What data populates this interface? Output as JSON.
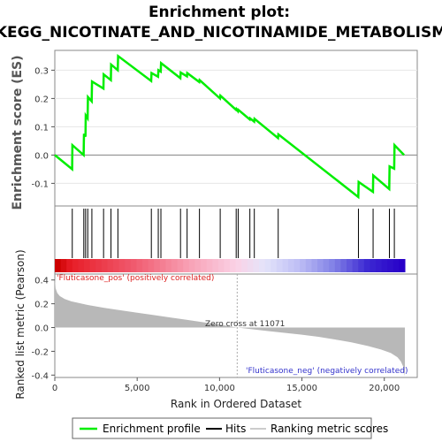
{
  "title_line1": "Enrichment plot:",
  "title_line2": "KEGG_NICOTINATE_AND_NICOTINAMIDE_METABOLISM",
  "colors": {
    "profile": "#00ee00",
    "hits": "#000000",
    "metric_fill": "#b8b8b8",
    "pos_label": "#dd2222",
    "neg_label": "#3333cc"
  },
  "chart_data": [
    {
      "type": "line",
      "name": "enrichment-profile",
      "ylabel": "Enrichment score (ES)",
      "ylim": [
        -0.18,
        0.37
      ],
      "y_ticks": [
        -0.1,
        0.0,
        0.1,
        0.2,
        0.3
      ],
      "y_tick_labels": [
        "-0.1",
        "0.0",
        "0.1",
        "0.2",
        "0.3"
      ],
      "xlim": [
        0,
        22000
      ],
      "zero_line": true,
      "series": [
        {
          "x": [
            0,
            1050,
            1070,
            1750,
            1770,
            1860,
            1880,
            1990,
            2010,
            2240,
            2260,
            2950,
            2970,
            3400,
            3420,
            3820,
            3840,
            5850,
            5870,
            6270,
            6290,
            6430,
            6450,
            7620,
            7640,
            8020,
            8040,
            8770,
            8790,
            10030,
            10050,
            11000,
            11020,
            11120,
            11140,
            11830,
            11850,
            12100,
            12120,
            13550,
            13570,
            18420,
            18440,
            19310,
            19330,
            20300,
            20320,
            20600,
            20620,
            21200
          ],
          "y": [
            0.0,
            -0.05,
            0.035,
            0.0,
            0.075,
            0.065,
            0.14,
            0.13,
            0.205,
            0.19,
            0.26,
            0.235,
            0.285,
            0.265,
            0.32,
            0.3,
            0.35,
            0.262,
            0.29,
            0.277,
            0.3,
            0.295,
            0.325,
            0.272,
            0.292,
            0.278,
            0.29,
            0.258,
            0.265,
            0.2,
            0.21,
            0.16,
            0.163,
            0.155,
            0.16,
            0.126,
            0.13,
            0.118,
            0.128,
            0.06,
            0.073,
            -0.148,
            -0.095,
            -0.13,
            -0.072,
            -0.12,
            -0.04,
            -0.048,
            0.035,
            0.0
          ]
        }
      ]
    },
    {
      "type": "scatter",
      "name": "hits",
      "xlim": [
        0,
        22000
      ],
      "x": [
        1060,
        1760,
        1870,
        2000,
        2250,
        2960,
        3410,
        3830,
        5860,
        6280,
        6440,
        7630,
        8030,
        8780,
        10040,
        11010,
        11130,
        11840,
        12110,
        13560,
        18430,
        19320,
        20310,
        20610
      ]
    },
    {
      "type": "area",
      "name": "ranked-list-metric",
      "ylabel": "Ranked list metric (Pearson)",
      "xlabel": "Rank in Ordered Dataset",
      "ylim": [
        -0.42,
        0.45
      ],
      "y_ticks": [
        -0.4,
        -0.2,
        0.0,
        0.2,
        0.4
      ],
      "y_tick_labels": [
        "-0.4",
        "-0.2",
        "0.0",
        "0.2",
        "0.4"
      ],
      "xlim": [
        0,
        22000
      ],
      "x_ticks": [
        0,
        5000,
        10000,
        15000,
        20000
      ],
      "x_tick_labels": [
        "0",
        "5,000",
        "10,000",
        "15,000",
        "20,000"
      ],
      "x": [
        0,
        50,
        150,
        300,
        600,
        1000,
        2000,
        3000,
        4000,
        5000,
        6000,
        7000,
        8000,
        9000,
        10000,
        11071,
        12000,
        13000,
        14000,
        15000,
        16000,
        17000,
        18000,
        19000,
        19800,
        20400,
        20800,
        21000,
        21150,
        21250
      ],
      "y": [
        0.42,
        0.33,
        0.29,
        0.265,
        0.24,
        0.22,
        0.19,
        0.165,
        0.145,
        0.125,
        0.105,
        0.085,
        0.065,
        0.045,
        0.025,
        0.0,
        -0.015,
        -0.03,
        -0.045,
        -0.06,
        -0.078,
        -0.1,
        -0.125,
        -0.155,
        -0.185,
        -0.215,
        -0.25,
        -0.285,
        -0.33,
        -0.41
      ],
      "annotations": {
        "pos": "'Fluticasone_pos' (positively correlated)",
        "neg": "'Fluticasone_neg' (negatively correlated)",
        "zero_cross": "Zero cross at 11071"
      },
      "zero_cross": 11071
    }
  ],
  "legend": {
    "items": [
      {
        "label": "Enrichment profile",
        "color": "#00ee00"
      },
      {
        "label": "Hits",
        "color": "#000000"
      },
      {
        "label": "Ranking metric scores",
        "color": "#cccccc"
      }
    ]
  }
}
